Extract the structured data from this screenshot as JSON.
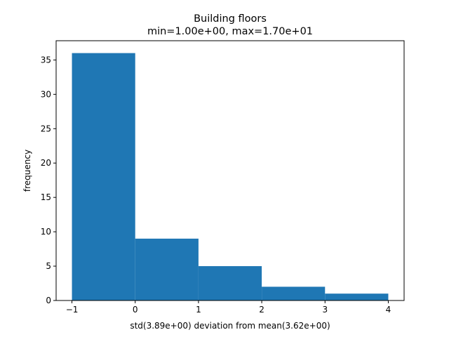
{
  "chart_data": {
    "type": "bar",
    "title": "Building floors",
    "subtitle": "min=1.00e+00, max=1.70e+01",
    "xlabel": "std(3.89e+00) deviation from mean(3.62e+00)",
    "ylabel": "frequency",
    "bins": [
      {
        "x0": -1,
        "x1": 0,
        "value": 36
      },
      {
        "x0": 0,
        "x1": 1,
        "value": 9
      },
      {
        "x0": 1,
        "x1": 2,
        "value": 5
      },
      {
        "x0": 2,
        "x1": 3,
        "value": 2
      },
      {
        "x0": 3,
        "x1": 4,
        "value": 1
      }
    ],
    "xlim": [
      -1.25,
      4.25
    ],
    "ylim": [
      0,
      37.8
    ],
    "xticks": [
      {
        "value": -1,
        "label": "−1"
      },
      {
        "value": 0,
        "label": "0"
      },
      {
        "value": 1,
        "label": "1"
      },
      {
        "value": 2,
        "label": "2"
      },
      {
        "value": 3,
        "label": "3"
      },
      {
        "value": 4,
        "label": "4"
      }
    ],
    "yticks": [
      {
        "value": 0,
        "label": "0"
      },
      {
        "value": 5,
        "label": "5"
      },
      {
        "value": 10,
        "label": "10"
      },
      {
        "value": 15,
        "label": "15"
      },
      {
        "value": 20,
        "label": "20"
      },
      {
        "value": 25,
        "label": "25"
      },
      {
        "value": 30,
        "label": "30"
      },
      {
        "value": 35,
        "label": "35"
      }
    ],
    "highlight_tick": 0,
    "bar_color": "#1f77b4",
    "highlight_color": "#ff0000",
    "grid": false
  }
}
